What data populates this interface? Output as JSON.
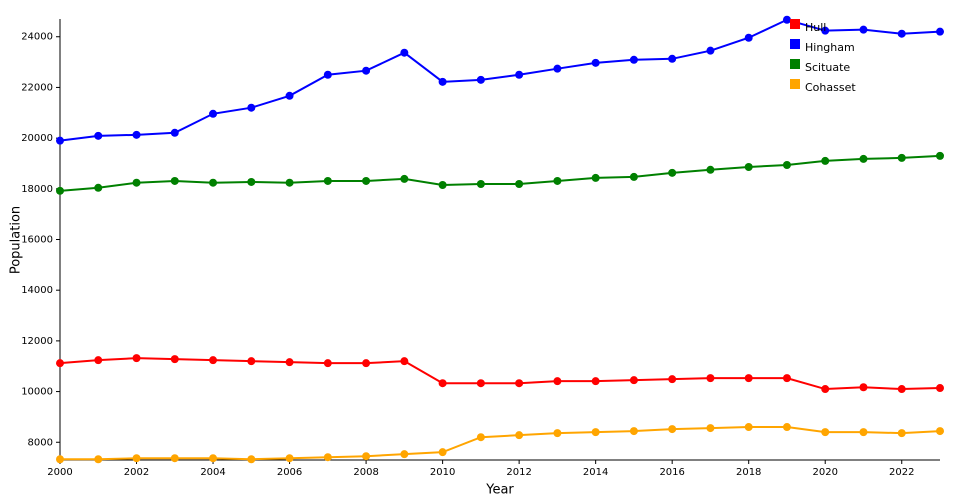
{
  "chart_data": {
    "type": "line",
    "x_label": "Year",
    "y_label": "Population",
    "x": [
      2000,
      2001,
      2002,
      2003,
      2004,
      2005,
      2006,
      2007,
      2008,
      2009,
      2010,
      2011,
      2012,
      2013,
      2014,
      2015,
      2016,
      2017,
      2018,
      2019,
      2020,
      2021,
      2022,
      2023
    ],
    "series": [
      {
        "name": "Hull",
        "color": "#ff0000",
        "values": [
          11120,
          11240,
          11320,
          11280,
          11240,
          11200,
          11160,
          11120,
          11120,
          11200,
          10330,
          10330,
          10330,
          10410,
          10410,
          10450,
          10490,
          10530,
          10530,
          10530,
          10100,
          10170,
          10100,
          10140
        ]
      },
      {
        "name": "Hingham",
        "color": "#0000ff",
        "values": [
          19900,
          20090,
          20130,
          20210,
          20960,
          21200,
          21670,
          22500,
          22660,
          23370,
          22220,
          22300,
          22500,
          22740,
          22970,
          23090,
          23130,
          23450,
          23960,
          24670,
          24240,
          24280,
          24120,
          24200
        ]
      },
      {
        "name": "Scituate",
        "color": "#008000",
        "values": [
          17920,
          18040,
          18240,
          18310,
          18240,
          18270,
          18240,
          18310,
          18310,
          18390,
          18150,
          18190,
          18190,
          18310,
          18430,
          18470,
          18630,
          18750,
          18860,
          18940,
          19100,
          19180,
          19220,
          19300
        ]
      },
      {
        "name": "Cohasset",
        "color": "#ffa500",
        "values": [
          7330,
          7330,
          7370,
          7370,
          7370,
          7330,
          7370,
          7410,
          7450,
          7530,
          7610,
          8200,
          8280,
          8360,
          8400,
          8440,
          8520,
          8560,
          8600,
          8600,
          8400,
          8400,
          8360,
          8440
        ]
      }
    ],
    "xlim": [
      2000,
      2023
    ],
    "xticks": [
      2000,
      2002,
      2004,
      2006,
      2008,
      2010,
      2012,
      2014,
      2016,
      2018,
      2020,
      2022
    ],
    "ylim": [
      7300,
      24700
    ],
    "yticks": [
      8000,
      10000,
      12000,
      14000,
      16000,
      18000,
      20000,
      22000,
      24000
    ],
    "legend": "top-right"
  }
}
